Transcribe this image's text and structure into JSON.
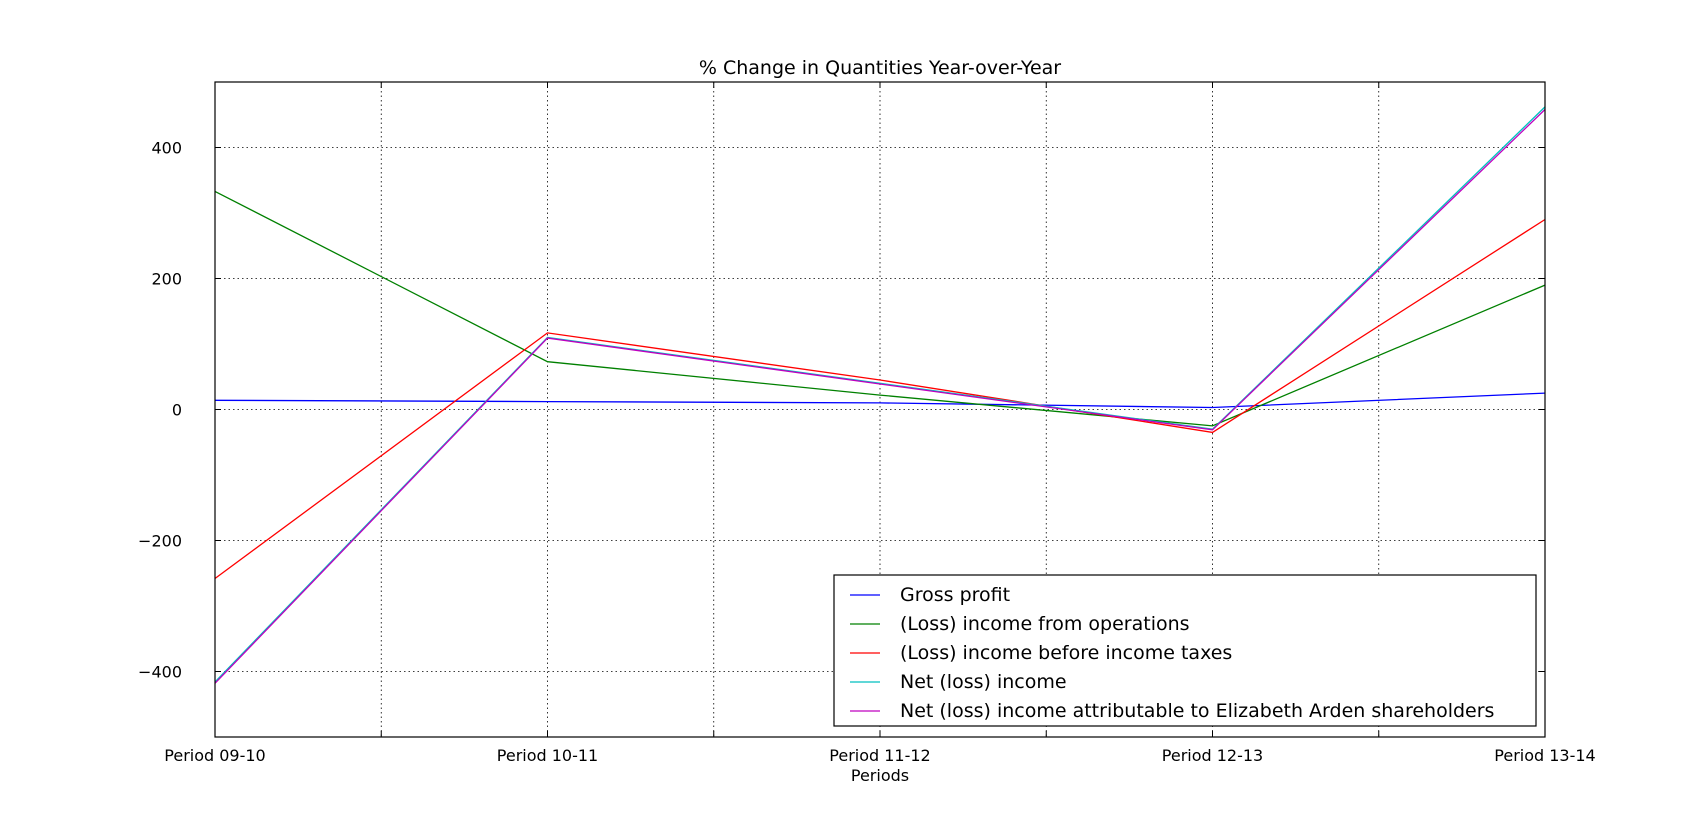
{
  "chart_data": {
    "type": "line",
    "title": "% Change in Quantities Year-over-Year",
    "xlabel": "Periods",
    "ylabel": "",
    "categories": [
      "Period 09-10",
      "Period 10-11",
      "Period 11-12",
      "Period 12-13",
      "Period 13-14"
    ],
    "ylim": [
      -500,
      500
    ],
    "yticks": [
      -400,
      -200,
      0,
      200,
      400
    ],
    "ytick_labels": [
      "−400",
      "−200",
      "0",
      "200",
      "400"
    ],
    "grid": true,
    "legend_position": "lower-right",
    "series": [
      {
        "name": "Gross profit",
        "color": "#0000ff",
        "values": [
          14,
          12,
          10,
          3,
          25
        ]
      },
      {
        "name": "(Loss) income from operations",
        "color": "#008000",
        "values": [
          333,
          73,
          22,
          -25,
          190
        ]
      },
      {
        "name": "(Loss) income before income taxes",
        "color": "#ff0000",
        "values": [
          -258,
          117,
          45,
          -35,
          290
        ]
      },
      {
        "name": "Net (loss) income",
        "color": "#00bfbf",
        "values": [
          -416,
          110,
          40,
          -30,
          462
        ]
      },
      {
        "name": "Net (loss) income attributable to Elizabeth Arden shareholders",
        "color": "#bf00bf",
        "values": [
          -418,
          109,
          39,
          -31,
          458
        ]
      }
    ]
  }
}
